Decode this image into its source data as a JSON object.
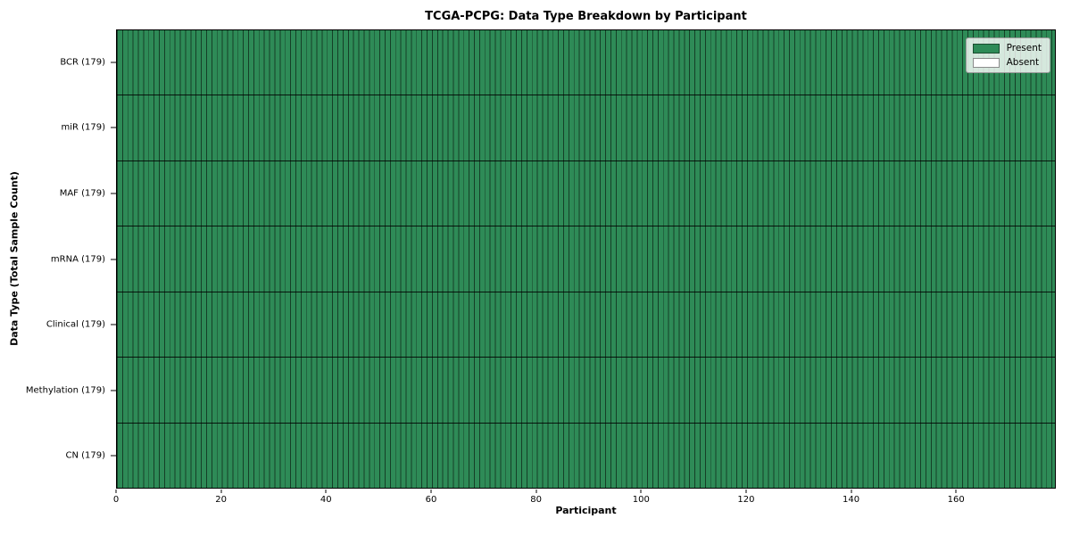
{
  "chart_data": {
    "type": "heatmap",
    "title": "TCGA-PCPG: Data Type Breakdown by Participant",
    "xlabel": "Participant",
    "ylabel": "Data Type (Total Sample Count)",
    "x_range": [
      0,
      179
    ],
    "x_ticks": [
      0,
      20,
      40,
      60,
      80,
      100,
      120,
      140,
      160
    ],
    "participant_count": 179,
    "categories": [
      "BCR (179)",
      "miR (179)",
      "MAF (179)",
      "mRNA (179)",
      "Clinical (179)",
      "Methylation (179)",
      "CN (179)"
    ],
    "rows": [
      {
        "label": "BCR (179)",
        "data_type": "BCR",
        "total_samples": 179,
        "present": 179,
        "absent": 0
      },
      {
        "label": "miR (179)",
        "data_type": "miR",
        "total_samples": 179,
        "present": 179,
        "absent": 0
      },
      {
        "label": "MAF (179)",
        "data_type": "MAF",
        "total_samples": 179,
        "present": 179,
        "absent": 0
      },
      {
        "label": "mRNA (179)",
        "data_type": "mRNA",
        "total_samples": 179,
        "present": 179,
        "absent": 0
      },
      {
        "label": "Clinical (179)",
        "data_type": "Clinical",
        "total_samples": 179,
        "present": 179,
        "absent": 0
      },
      {
        "label": "Methylation (179)",
        "data_type": "Methylation",
        "total_samples": 179,
        "present": 179,
        "absent": 0
      },
      {
        "label": "CN (179)",
        "data_type": "CN",
        "total_samples": 179,
        "present": 179,
        "absent": 0
      }
    ],
    "legend": [
      {
        "label": "Present",
        "color": "#2e8b57"
      },
      {
        "label": "Absent",
        "color": "#ffffff"
      }
    ],
    "colors": {
      "present": "#2e8b57",
      "absent": "#ffffff",
      "bar_edge": "#1c3f2b",
      "row_separator": "#000000",
      "axis": "#000000"
    },
    "layout": {
      "grid": false,
      "legend_position": "upper right",
      "all_cells_present": true
    }
  }
}
